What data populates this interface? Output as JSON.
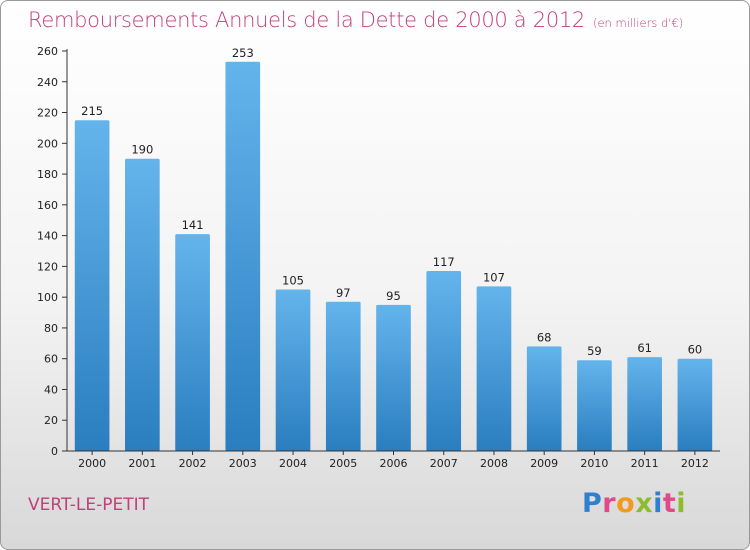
{
  "title": "Remboursements Annuels de la Dette de 2000 à 2012",
  "unit": "(en milliers d'€)",
  "commune": "VERT-LE-PETIT",
  "logo": {
    "letters": [
      "P",
      "r",
      "o",
      "x",
      "i",
      "t",
      "i"
    ],
    "colors": [
      "#2f7fd0",
      "#e04a8a",
      "#f39a1e",
      "#8dbd2e",
      "#2f7fd0",
      "#e04a8a",
      "#8dbd2e"
    ]
  },
  "chart_data": {
    "type": "bar",
    "title": "Remboursements Annuels de la Dette de 2000 à 2012",
    "subtitle": "(en milliers d'€)",
    "xlabel": "",
    "ylabel": "",
    "categories": [
      "2000",
      "2001",
      "2002",
      "2003",
      "2004",
      "2005",
      "2006",
      "2007",
      "2008",
      "2009",
      "2010",
      "2011",
      "2012"
    ],
    "values": [
      215,
      190,
      141,
      253,
      105,
      97,
      95,
      117,
      107,
      68,
      59,
      61,
      60
    ],
    "ylim": [
      0,
      260
    ],
    "yticks": [
      0,
      20,
      40,
      60,
      80,
      100,
      120,
      140,
      160,
      180,
      200,
      220,
      240,
      260
    ],
    "grid": false,
    "legend": "none",
    "bar_color_top": "#64b4ec",
    "bar_color_bottom": "#2a7ebf"
  }
}
